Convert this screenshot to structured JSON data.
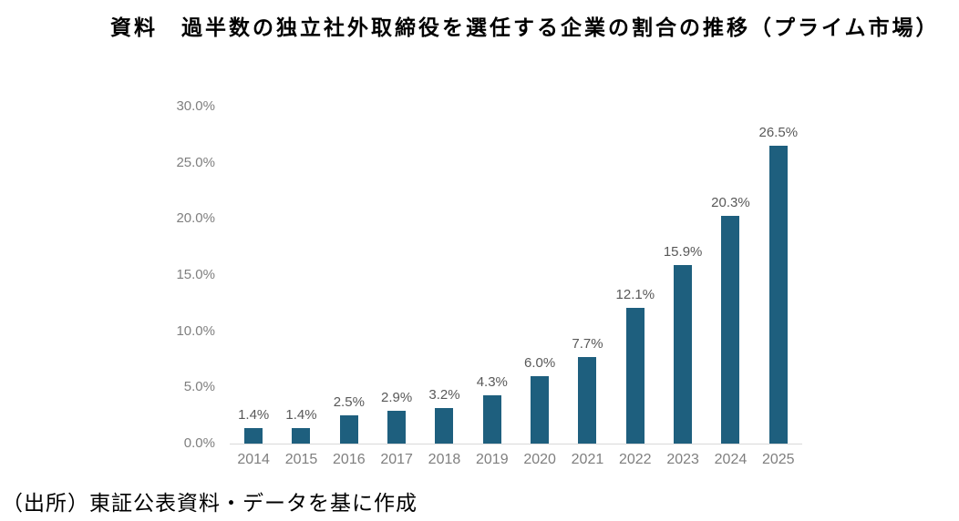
{
  "title": "資料　過半数の独立社外取締役を選任する企業の割合の推移（プライム市場）",
  "source_note": "（出所）東証公表資料・データを基に作成",
  "colors": {
    "bar": "#1e5f7e",
    "axis_line": "#d9d9d9",
    "axis_label": "#7f7f7f",
    "data_label": "#595959",
    "title": "#000000"
  },
  "chart_data": {
    "type": "bar",
    "title": "資料　過半数の独立社外取締役を選任する企業の割合の推移（プライム市場）",
    "categories": [
      "2014",
      "2015",
      "2016",
      "2017",
      "2018",
      "2019",
      "2020",
      "2021",
      "2022",
      "2023",
      "2024",
      "2025"
    ],
    "values": [
      1.4,
      1.4,
      2.5,
      2.9,
      3.2,
      4.3,
      6.0,
      7.7,
      12.1,
      15.9,
      20.3,
      26.5
    ],
    "data_labels": [
      "1.4%",
      "1.4%",
      "2.5%",
      "2.9%",
      "3.2%",
      "4.3%",
      "6.0%",
      "7.7%",
      "12.1%",
      "15.9%",
      "20.3%",
      "26.5%"
    ],
    "xlabel": "",
    "ylabel": "",
    "ylim": [
      0,
      30
    ],
    "yticks": [
      0,
      5,
      10,
      15,
      20,
      25,
      30
    ],
    "ytick_labels": [
      "0.0%",
      "5.0%",
      "10.0%",
      "15.0%",
      "20.0%",
      "25.0%",
      "30.0%"
    ],
    "grid": false,
    "legend": false,
    "source": "（出所）東証公表資料・データを基に作成"
  }
}
